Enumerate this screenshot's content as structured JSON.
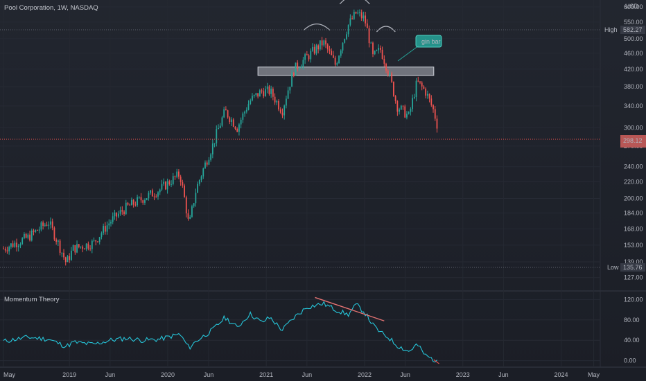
{
  "header": {
    "symbol_line": "Pool Corporation, 1W, NASDAQ",
    "currency": "USD"
  },
  "indicator": {
    "name": "Momentum Theory"
  },
  "markers": {
    "high": {
      "label": "High",
      "value": "582.27"
    },
    "low": {
      "label": "Low",
      "value": "135.76"
    },
    "last_price": "298.12"
  },
  "annotations": {
    "callout": "gin bar"
  },
  "colors": {
    "background": "#1e222d",
    "up": "#26a69a",
    "down": "#ef5350",
    "momentum_line": "#26c6da",
    "trendline": "#e57373",
    "zone_fill": "#b2b5be",
    "arc": "#b2b5be"
  },
  "chart_data": [
    {
      "type": "candlestick",
      "title": "Pool Corporation, 1W, NASDAQ",
      "y_scale": "log",
      "ylim": [
        120,
        600
      ],
      "x_ticks": [
        "May",
        "2019",
        "Jun",
        "2020",
        "Jun",
        "2021",
        "Jun",
        "2022",
        "Jun",
        "2023",
        "Jun",
        "2024",
        "May"
      ],
      "y_ticks": [
        600,
        550,
        500,
        460,
        420,
        380,
        340,
        300,
        270,
        240,
        220,
        200,
        184,
        168,
        153,
        139,
        127
      ],
      "y_tick_labels": [
        "600.00",
        "550.00",
        "500.00",
        "460.00",
        "420.00",
        "380.00",
        "340.00",
        "300.00",
        "270.00",
        "240.00",
        "220.00",
        "200.00",
        "184.00",
        "168.00",
        "153.00",
        "139.00",
        "127.00"
      ],
      "series": [
        {
          "name": "Pool Corporation",
          "points": [
            [
              "2018-05-01",
              150
            ],
            [
              "2018-08-01",
              160
            ],
            [
              "2018-10-15",
              175
            ],
            [
              "2018-12-20",
              138
            ],
            [
              "2019-01-15",
              150
            ],
            [
              "2019-04-01",
              155
            ],
            [
              "2019-06-01",
              175
            ],
            [
              "2019-08-01",
              190
            ],
            [
              "2019-10-01",
              200
            ],
            [
              "2019-12-01",
              210
            ],
            [
              "2020-02-15",
              230
            ],
            [
              "2020-03-20",
              170
            ],
            [
              "2020-04-15",
              210
            ],
            [
              "2020-06-15",
              270
            ],
            [
              "2020-08-01",
              330
            ],
            [
              "2020-09-15",
              300
            ],
            [
              "2020-11-01",
              350
            ],
            [
              "2020-12-15",
              370
            ],
            [
              "2021-01-15",
              370
            ],
            [
              "2021-03-01",
              330
            ],
            [
              "2021-04-15",
              420
            ],
            [
              "2021-06-01",
              450
            ],
            [
              "2021-08-01",
              490
            ],
            [
              "2021-09-15",
              430
            ],
            [
              "2021-11-01",
              540
            ],
            [
              "2021-12-01",
              580
            ],
            [
              "2022-01-01",
              560
            ],
            [
              "2022-02-01",
              450
            ],
            [
              "2022-03-01",
              470
            ],
            [
              "2022-04-01",
              410
            ],
            [
              "2022-05-01",
              340
            ],
            [
              "2022-06-15",
              320
            ],
            [
              "2022-07-15",
              390
            ],
            [
              "2022-08-15",
              370
            ],
            [
              "2022-09-15",
              330
            ],
            [
              "2022-10-01",
              298
            ]
          ]
        }
      ],
      "support_zone": [
        405,
        425
      ]
    },
    {
      "type": "line",
      "title": "Momentum Theory",
      "ylim": [
        -10,
        130
      ],
      "y_ticks": [
        0,
        40,
        80,
        120
      ],
      "y_tick_labels": [
        "0.00",
        "40.00",
        "80.00",
        "120.00"
      ],
      "series": [
        {
          "name": "Momentum Theory",
          "points": [
            [
              "2018-05-01",
              38
            ],
            [
              "2018-08-01",
              46
            ],
            [
              "2018-10-15",
              42
            ],
            [
              "2018-12-20",
              28
            ],
            [
              "2019-01-15",
              36
            ],
            [
              "2019-04-01",
              32
            ],
            [
              "2019-06-01",
              40
            ],
            [
              "2019-08-01",
              44
            ],
            [
              "2019-10-01",
              40
            ],
            [
              "2019-12-01",
              42
            ],
            [
              "2020-02-15",
              52
            ],
            [
              "2020-03-20",
              25
            ],
            [
              "2020-04-15",
              38
            ],
            [
              "2020-06-15",
              60
            ],
            [
              "2020-08-01",
              85
            ],
            [
              "2020-09-15",
              65
            ],
            [
              "2020-11-01",
              92
            ],
            [
              "2020-12-15",
              75
            ],
            [
              "2021-01-15",
              85
            ],
            [
              "2021-03-01",
              60
            ],
            [
              "2021-04-15",
              85
            ],
            [
              "2021-06-01",
              105
            ],
            [
              "2021-08-01",
              112
            ],
            [
              "2021-09-15",
              100
            ],
            [
              "2021-11-01",
              90
            ],
            [
              "2021-12-01",
              110
            ],
            [
              "2022-01-01",
              95
            ],
            [
              "2022-02-01",
              70
            ],
            [
              "2022-03-01",
              55
            ],
            [
              "2022-04-01",
              45
            ],
            [
              "2022-05-01",
              30
            ],
            [
              "2022-06-15",
              18
            ],
            [
              "2022-07-15",
              32
            ],
            [
              "2022-08-15",
              10
            ],
            [
              "2022-09-15",
              2
            ],
            [
              "2022-10-01",
              -5
            ]
          ]
        }
      ]
    }
  ]
}
